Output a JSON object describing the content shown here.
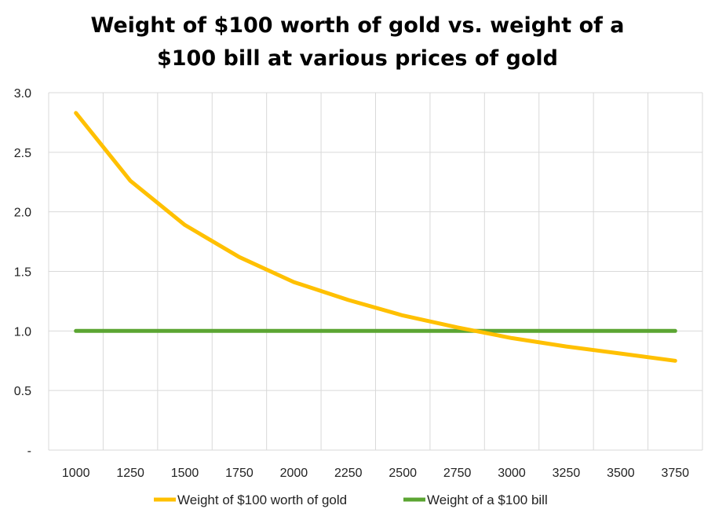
{
  "chart_data": {
    "type": "line",
    "title_lines": [
      "Weight of $100 worth of gold vs. weight of a",
      "$100 bill at various prices of gold"
    ],
    "xlabel": "",
    "ylabel": "",
    "x": [
      1000,
      1250,
      1500,
      1750,
      2000,
      2250,
      2500,
      2750,
      3000,
      3250,
      3500,
      3750
    ],
    "x_tick_labels": [
      "1000",
      "1250",
      "1500",
      "1750",
      "2000",
      "2250",
      "2500",
      "2750",
      "3000",
      "3250",
      "3500",
      "3750"
    ],
    "y_tick_labels": [
      "-",
      "0.5",
      "1.0",
      "1.5",
      "2.0",
      "2.5",
      "3.0"
    ],
    "ylim": [
      0,
      3.0
    ],
    "y_ticks": [
      0,
      0.5,
      1.0,
      1.5,
      2.0,
      2.5,
      3.0
    ],
    "grid": true,
    "legend_position": "bottom",
    "series": [
      {
        "name": "Weight of $100 worth of gold",
        "color": "#FFC000",
        "values": [
          2.83,
          2.26,
          1.89,
          1.62,
          1.41,
          1.26,
          1.13,
          1.03,
          0.94,
          0.87,
          0.81,
          0.75
        ]
      },
      {
        "name": "Weight of a $100 bill",
        "color": "#5BA532",
        "values": [
          1.0,
          1.0,
          1.0,
          1.0,
          1.0,
          1.0,
          1.0,
          1.0,
          1.0,
          1.0,
          1.0,
          1.0
        ]
      }
    ]
  }
}
